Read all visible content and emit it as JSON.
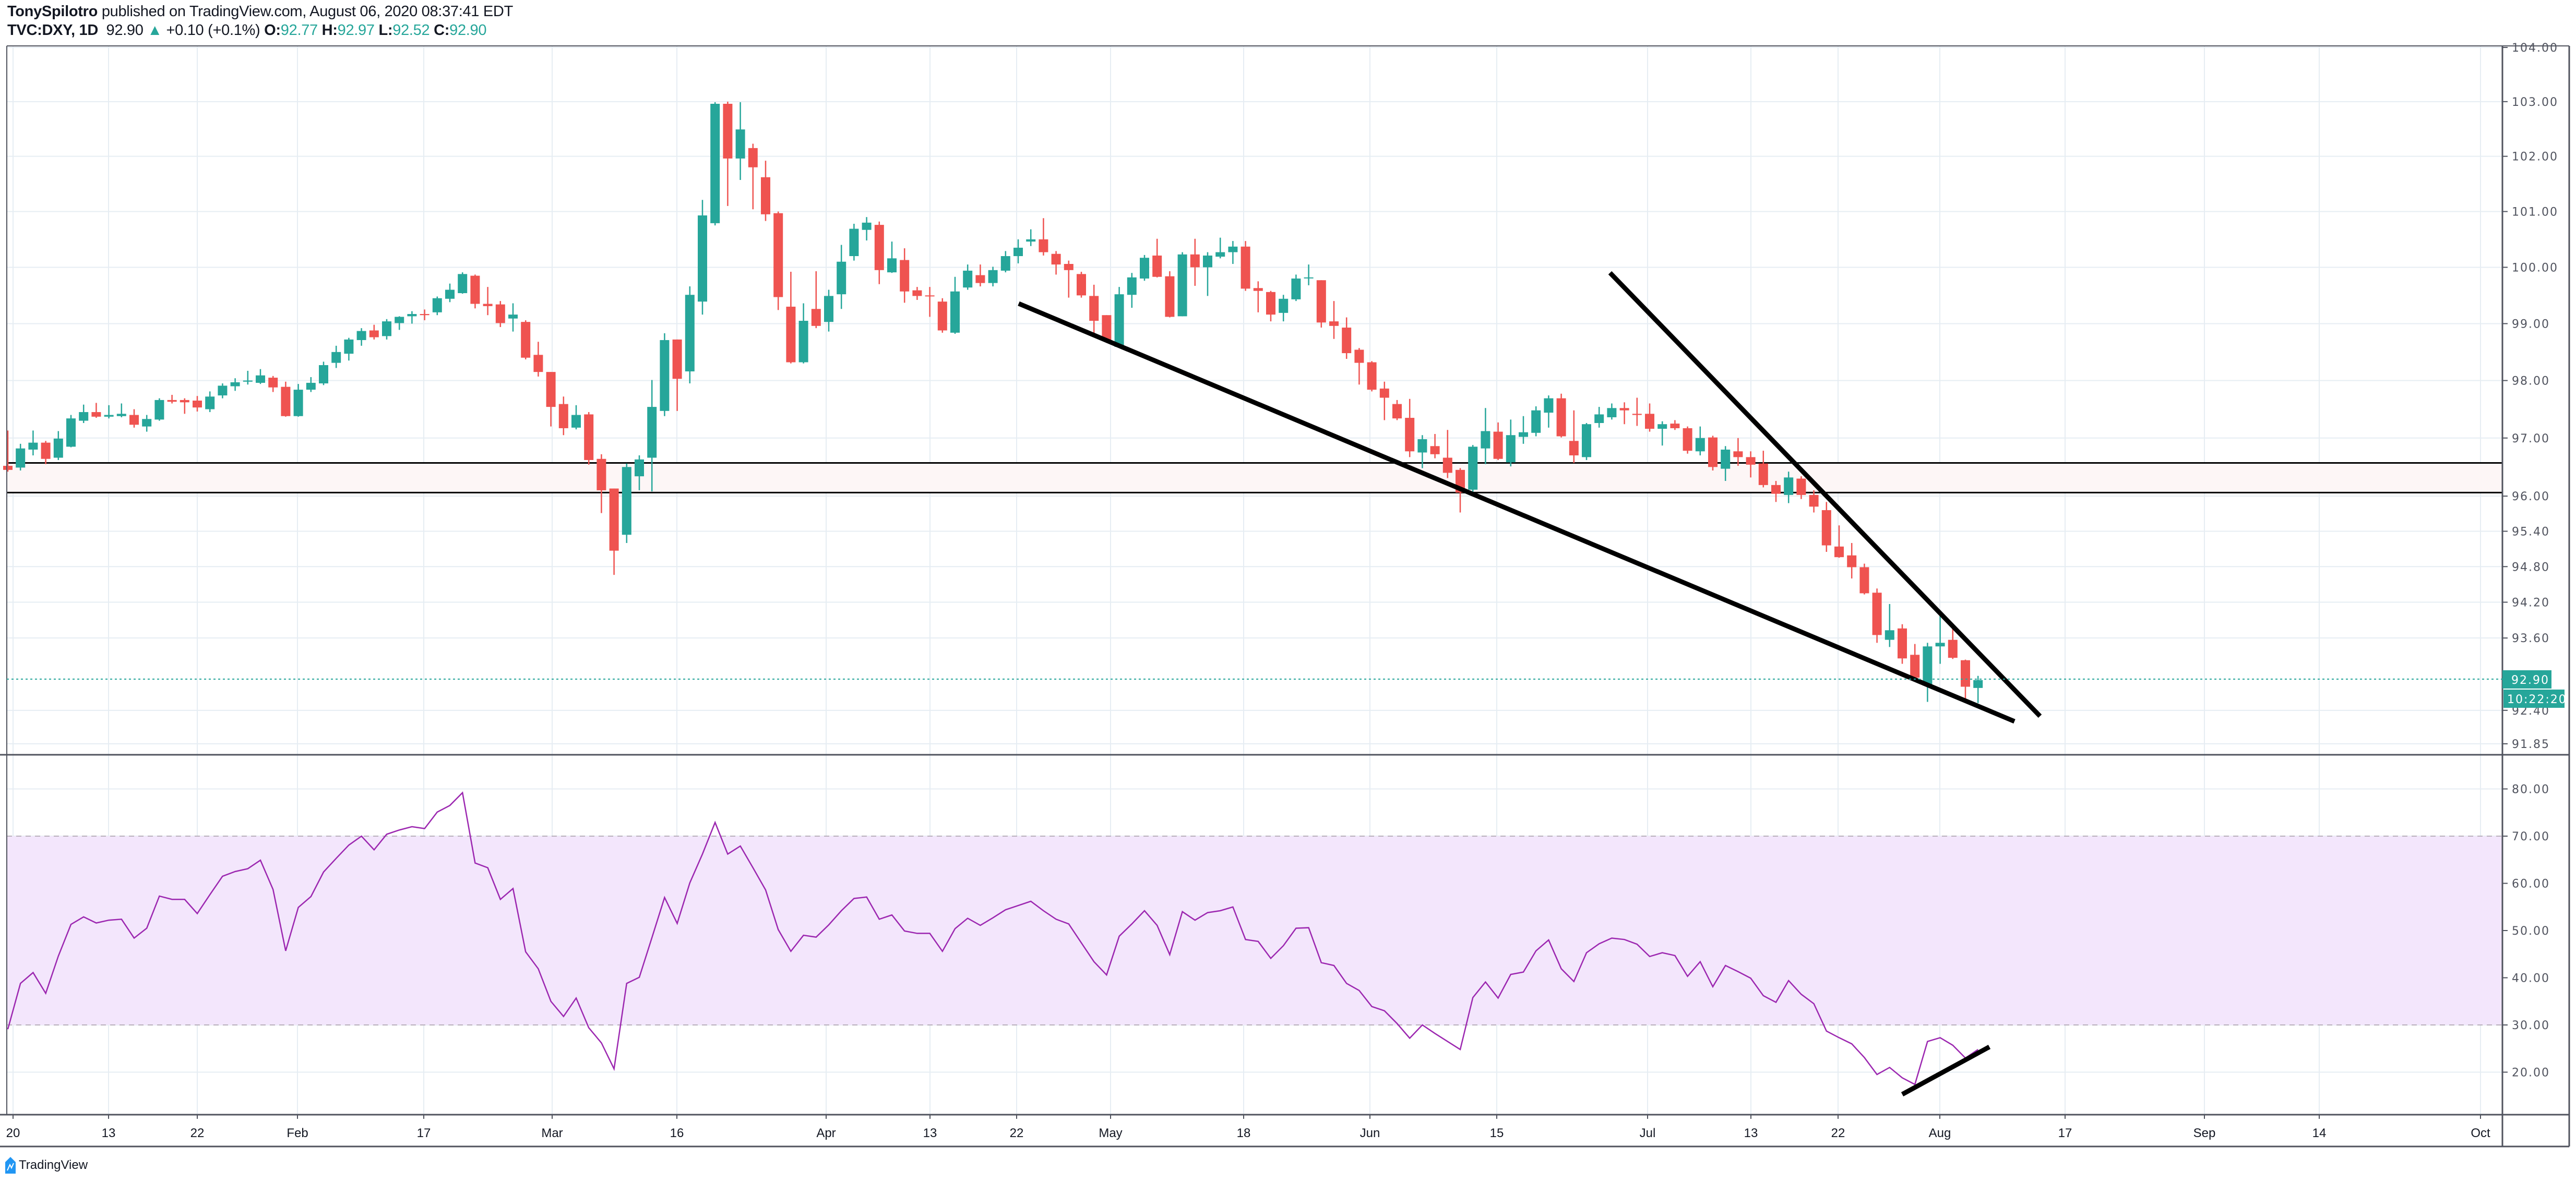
{
  "header": {
    "author": "TonySpilotro",
    "published": " published on TradingView.com, August 06, 2020 08:37:41 EDT",
    "symbol": "TVC:DXY, 1D",
    "last": "92.90",
    "change": "+0.10 (+0.1%)",
    "o_label": "O:",
    "o": "92.77",
    "h_label": "H:",
    "h": "92.97",
    "l_label": "L:",
    "l": "92.52",
    "c_label": "C:",
    "c": "92.90",
    "direction_icon": "triangle-up-icon"
  },
  "colors": {
    "up": "#26a69a",
    "down": "#ef5350",
    "rsi": "#9c27b0",
    "rsi_band": "#f3e6fc",
    "zone": "#fdf6f6",
    "drawing": "#000000"
  },
  "price_axis": {
    "scale": "log",
    "range": [
      91.6,
      104.05
    ],
    "ticks": [
      "104.00",
      "103.00",
      "102.00",
      "101.00",
      "100.00",
      "99.00",
      "98.00",
      "97.00",
      "96.00",
      "95.40",
      "94.80",
      "94.20",
      "93.60",
      "92.40",
      "91.85"
    ],
    "last_price_tag": "92.90",
    "countdown_tag": "10:22:20"
  },
  "rsi_axis": {
    "range": [
      12,
      84
    ],
    "ticks": [
      "80.00",
      "70.00",
      "60.00",
      "50.00",
      "40.00",
      "30.00",
      "20.00"
    ],
    "band": [
      30,
      70
    ]
  },
  "time_axis": {
    "ticks": [
      "20",
      "13",
      "22",
      "Feb",
      "17",
      "Mar",
      "16",
      "Apr",
      "13",
      "22",
      "May",
      "18",
      "Jun",
      "15",
      "Jul",
      "13",
      "22",
      "Aug",
      "17",
      "Sep",
      "14",
      "Oct"
    ]
  },
  "zone": {
    "top": 96.57,
    "bottom": 96.06
  },
  "chart_data": [
    {
      "type": "candlestick",
      "title": "TVC:DXY, 1D",
      "x_range": [
        "2020-01-02",
        "2020-08-06"
      ],
      "ohlc": [
        [
          96.52,
          97.13,
          96.42,
          96.45
        ],
        [
          96.49,
          96.9,
          96.44,
          96.82
        ],
        [
          96.8,
          97.13,
          96.7,
          96.92
        ],
        [
          96.92,
          96.95,
          96.55,
          96.64
        ],
        [
          96.66,
          97.12,
          96.62,
          96.99
        ],
        [
          96.85,
          97.4,
          96.84,
          97.34
        ],
        [
          97.3,
          97.58,
          97.26,
          97.45
        ],
        [
          97.45,
          97.61,
          97.35,
          97.37
        ],
        [
          97.37,
          97.57,
          97.34,
          97.4
        ],
        [
          97.38,
          97.6,
          97.36,
          97.42
        ],
        [
          97.4,
          97.5,
          97.18,
          97.23
        ],
        [
          97.2,
          97.4,
          97.11,
          97.33
        ],
        [
          97.32,
          97.69,
          97.3,
          97.66
        ],
        [
          97.66,
          97.75,
          97.6,
          97.63
        ],
        [
          97.66,
          97.69,
          97.42,
          97.62
        ],
        [
          97.65,
          97.73,
          97.46,
          97.53
        ],
        [
          97.5,
          97.81,
          97.45,
          97.72
        ],
        [
          97.74,
          97.95,
          97.69,
          97.91
        ],
        [
          97.9,
          98.04,
          97.82,
          97.97
        ],
        [
          97.98,
          98.17,
          97.93,
          98.0
        ],
        [
          97.96,
          98.2,
          97.94,
          98.09
        ],
        [
          98.05,
          98.08,
          97.8,
          97.88
        ],
        [
          97.89,
          97.98,
          97.37,
          97.38
        ],
        [
          97.38,
          97.94,
          97.37,
          97.84
        ],
        [
          97.84,
          98.06,
          97.8,
          97.96
        ],
        [
          97.95,
          98.33,
          97.92,
          98.27
        ],
        [
          98.31,
          98.61,
          98.22,
          98.5
        ],
        [
          98.47,
          98.75,
          98.35,
          98.72
        ],
        [
          98.71,
          98.92,
          98.61,
          98.87
        ],
        [
          98.88,
          98.98,
          98.72,
          98.76
        ],
        [
          98.78,
          99.08,
          98.72,
          99.04
        ],
        [
          99.01,
          99.13,
          98.89,
          99.12
        ],
        [
          99.13,
          99.22,
          99.0,
          99.17
        ],
        [
          99.17,
          99.25,
          99.06,
          99.15
        ],
        [
          99.2,
          99.48,
          99.15,
          99.45
        ],
        [
          99.44,
          99.71,
          99.38,
          99.6
        ],
        [
          99.54,
          99.91,
          99.53,
          99.88
        ],
        [
          99.85,
          99.87,
          99.27,
          99.35
        ],
        [
          99.35,
          99.65,
          99.15,
          99.31
        ],
        [
          99.34,
          99.4,
          98.94,
          99.01
        ],
        [
          99.09,
          99.36,
          98.86,
          99.16
        ],
        [
          99.03,
          99.06,
          98.37,
          98.4
        ],
        [
          98.45,
          98.68,
          98.07,
          98.15
        ],
        [
          98.15,
          98.15,
          97.2,
          97.54
        ],
        [
          97.59,
          97.72,
          97.05,
          97.17
        ],
        [
          97.18,
          97.57,
          97.15,
          97.4
        ],
        [
          97.41,
          97.45,
          96.54,
          96.62
        ],
        [
          96.64,
          96.72,
          95.71,
          96.1
        ],
        [
          96.13,
          96.13,
          94.66,
          95.07
        ],
        [
          95.34,
          96.56,
          95.2,
          96.5
        ],
        [
          96.34,
          96.7,
          96.1,
          96.63
        ],
        [
          96.66,
          98.01,
          96.08,
          97.54
        ],
        [
          97.47,
          98.83,
          97.38,
          98.71
        ],
        [
          98.72,
          98.72,
          97.47,
          98.03
        ],
        [
          98.16,
          99.66,
          97.95,
          99.51
        ],
        [
          99.39,
          101.21,
          99.16,
          100.93
        ],
        [
          100.79,
          102.99,
          100.75,
          102.96
        ],
        [
          102.96,
          103.0,
          101.1,
          101.96
        ],
        [
          101.96,
          102.99,
          101.57,
          102.49
        ],
        [
          102.15,
          102.23,
          101.04,
          101.8
        ],
        [
          101.62,
          101.92,
          100.83,
          100.95
        ],
        [
          100.97,
          101.0,
          99.24,
          99.47
        ],
        [
          99.3,
          99.92,
          98.3,
          98.32
        ],
        [
          98.32,
          99.36,
          98.3,
          99.05
        ],
        [
          99.26,
          99.93,
          98.92,
          98.96
        ],
        [
          99.03,
          99.6,
          98.86,
          99.49
        ],
        [
          99.52,
          100.4,
          99.26,
          100.1
        ],
        [
          100.2,
          100.78,
          100.12,
          100.69
        ],
        [
          100.67,
          100.9,
          100.48,
          100.8
        ],
        [
          100.76,
          100.82,
          99.7,
          99.95
        ],
        [
          99.91,
          100.46,
          99.9,
          100.16
        ],
        [
          100.13,
          100.34,
          99.37,
          99.57
        ],
        [
          99.59,
          99.65,
          99.42,
          99.49
        ],
        [
          99.5,
          99.65,
          99.12,
          99.49
        ],
        [
          99.39,
          99.45,
          98.84,
          98.88
        ],
        [
          98.84,
          99.83,
          98.82,
          99.57
        ],
        [
          99.64,
          100.05,
          99.6,
          99.94
        ],
        [
          99.86,
          100.05,
          99.66,
          99.72
        ],
        [
          99.72,
          100.01,
          99.66,
          99.95
        ],
        [
          99.94,
          100.29,
          99.91,
          100.2
        ],
        [
          100.2,
          100.5,
          100.07,
          100.35
        ],
        [
          100.46,
          100.68,
          100.38,
          100.5
        ],
        [
          100.5,
          100.88,
          100.21,
          100.27
        ],
        [
          100.24,
          100.29,
          99.87,
          100.05
        ],
        [
          100.06,
          100.12,
          99.46,
          99.95
        ],
        [
          99.88,
          99.92,
          99.46,
          99.5
        ],
        [
          99.49,
          99.69,
          98.8,
          99.05
        ],
        [
          99.15,
          99.15,
          98.66,
          98.7
        ],
        [
          98.59,
          99.65,
          98.59,
          99.52
        ],
        [
          99.51,
          99.9,
          99.28,
          99.82
        ],
        [
          99.8,
          100.22,
          99.76,
          100.17
        ],
        [
          100.21,
          100.51,
          99.82,
          99.83
        ],
        [
          99.84,
          99.93,
          99.11,
          99.12
        ],
        [
          99.13,
          100.27,
          99.13,
          100.23
        ],
        [
          100.23,
          100.51,
          99.67,
          100.0
        ],
        [
          100.0,
          100.27,
          99.49,
          100.21
        ],
        [
          100.19,
          100.53,
          100.16,
          100.27
        ],
        [
          100.27,
          100.47,
          100.06,
          100.37
        ],
        [
          100.37,
          100.47,
          99.58,
          99.62
        ],
        [
          99.63,
          99.75,
          99.2,
          99.58
        ],
        [
          99.56,
          99.58,
          99.04,
          99.16
        ],
        [
          99.19,
          99.51,
          99.04,
          99.44
        ],
        [
          99.43,
          99.87,
          99.4,
          99.8
        ],
        [
          99.81,
          100.05,
          99.68,
          99.82
        ],
        [
          99.77,
          99.77,
          98.93,
          99.02
        ],
        [
          99.04,
          99.4,
          98.73,
          98.96
        ],
        [
          98.93,
          99.11,
          98.38,
          98.48
        ],
        [
          98.54,
          98.57,
          97.93,
          98.31
        ],
        [
          98.32,
          98.34,
          97.81,
          97.84
        ],
        [
          97.86,
          97.98,
          97.31,
          97.7
        ],
        [
          97.59,
          97.66,
          97.31,
          97.34
        ],
        [
          97.35,
          97.68,
          96.67,
          96.77
        ],
        [
          96.75,
          97.05,
          96.48,
          96.98
        ],
        [
          96.86,
          97.07,
          96.65,
          96.72
        ],
        [
          96.66,
          97.14,
          96.31,
          96.4
        ],
        [
          96.45,
          96.48,
          95.72,
          96.06
        ],
        [
          96.11,
          96.88,
          96.02,
          96.85
        ],
        [
          96.82,
          97.52,
          96.55,
          97.12
        ],
        [
          97.11,
          97.27,
          96.62,
          96.64
        ],
        [
          96.58,
          97.32,
          96.51,
          97.05
        ],
        [
          97.02,
          97.38,
          96.9,
          97.1
        ],
        [
          97.09,
          97.55,
          97.03,
          97.48
        ],
        [
          97.44,
          97.74,
          97.18,
          97.69
        ],
        [
          97.69,
          97.77,
          97.01,
          97.03
        ],
        [
          96.95,
          97.48,
          96.57,
          96.7
        ],
        [
          96.67,
          97.26,
          96.62,
          97.24
        ],
        [
          97.26,
          97.54,
          97.18,
          97.41
        ],
        [
          97.36,
          97.6,
          97.32,
          97.52
        ],
        [
          97.52,
          97.62,
          97.24,
          97.48
        ],
        [
          97.42,
          97.7,
          97.21,
          97.4
        ],
        [
          97.42,
          97.6,
          97.11,
          97.16
        ],
        [
          97.16,
          97.29,
          96.87,
          97.24
        ],
        [
          97.25,
          97.31,
          97.14,
          97.17
        ],
        [
          97.17,
          97.2,
          96.73,
          96.78
        ],
        [
          96.77,
          97.2,
          96.7,
          97.0
        ],
        [
          97.01,
          97.04,
          96.44,
          96.5
        ],
        [
          96.47,
          96.86,
          96.26,
          96.8
        ],
        [
          96.77,
          97.0,
          96.52,
          96.67
        ],
        [
          96.67,
          96.77,
          96.32,
          96.54
        ],
        [
          96.56,
          96.78,
          96.15,
          96.19
        ],
        [
          96.19,
          96.26,
          95.9,
          96.04
        ],
        [
          96.02,
          96.42,
          95.88,
          96.32
        ],
        [
          96.3,
          96.34,
          95.95,
          96.02
        ],
        [
          96.02,
          96.1,
          95.72,
          95.82
        ],
        [
          95.76,
          95.9,
          95.05,
          95.16
        ],
        [
          95.14,
          95.5,
          94.95,
          94.96
        ],
        [
          94.99,
          95.2,
          94.6,
          94.79
        ],
        [
          94.79,
          94.85,
          94.33,
          94.35
        ],
        [
          94.36,
          94.43,
          93.52,
          93.65
        ],
        [
          93.57,
          94.17,
          93.45,
          93.73
        ],
        [
          93.76,
          93.83,
          93.17,
          93.26
        ],
        [
          93.32,
          93.5,
          92.88,
          92.94
        ],
        [
          92.81,
          93.52,
          92.54,
          93.46
        ],
        [
          93.46,
          93.98,
          93.17,
          93.52
        ],
        [
          93.57,
          93.81,
          93.25,
          93.27
        ],
        [
          93.23,
          93.24,
          92.56,
          92.79
        ],
        [
          92.77,
          92.97,
          92.52,
          92.9
        ]
      ]
    },
    {
      "type": "line",
      "series": [
        {
          "values": [
            29.1,
            38.8,
            41.1,
            36.7,
            44.6,
            51.3,
            52.9,
            51.6,
            52.2,
            52.4,
            48.4,
            50.5,
            57.3,
            56.6,
            56.6,
            53.6,
            57.6,
            61.5,
            62.5,
            63.1,
            64.9,
            58.7,
            45.7,
            54.9,
            57.2,
            62.4,
            65.3,
            68.1,
            70.0,
            67.1,
            70.4,
            71.3,
            72.0,
            71.6,
            75.1,
            76.5,
            79.2,
            64.3,
            63.3,
            56.6,
            58.9,
            45.5,
            41.9,
            35.0,
            31.8,
            35.7,
            29.4,
            26.2,
            20.7,
            38.8,
            40.1,
            48.5,
            57.0,
            51.5,
            60.1,
            66.2,
            72.9,
            66.2,
            67.9,
            63.3,
            58.6,
            50.2,
            45.6,
            49.0,
            48.6,
            51.2,
            54.2,
            56.8,
            57.1,
            52.4,
            53.3,
            49.9,
            49.4,
            49.4,
            45.6,
            50.4,
            52.6,
            51.1,
            52.7,
            54.4,
            55.3,
            56.2,
            54.2,
            52.4,
            51.4,
            47.4,
            43.4,
            40.6,
            48.8,
            51.4,
            54.2,
            51.1,
            44.9,
            54.0,
            52.2,
            53.8,
            54.2,
            55.0,
            48.1,
            47.7,
            44.1,
            46.8,
            50.5,
            50.6,
            43.2,
            42.6,
            38.8,
            37.3,
            33.9,
            33.0,
            30.3,
            27.2,
            30.0,
            28.2,
            26.5,
            24.8,
            35.8,
            39.1,
            35.7,
            40.7,
            41.2,
            45.7,
            48.0,
            41.9,
            39.2,
            45.3,
            47.2,
            48.4,
            48.1,
            47.1,
            44.5,
            45.3,
            44.7,
            40.3,
            43.4,
            38.1,
            42.6,
            41.3,
            39.9,
            36.2,
            34.8,
            39.4,
            36.5,
            34.5,
            28.7,
            27.3,
            26.0,
            23.1,
            19.5,
            21.0,
            18.8,
            17.4,
            26.5,
            27.3,
            25.7,
            23.0,
            24.8
          ]
        }
      ],
      "ylim": [
        12,
        84
      ]
    }
  ],
  "footer": {
    "brand": "TradingView",
    "logo_icon": "tradingview-logo-icon"
  }
}
